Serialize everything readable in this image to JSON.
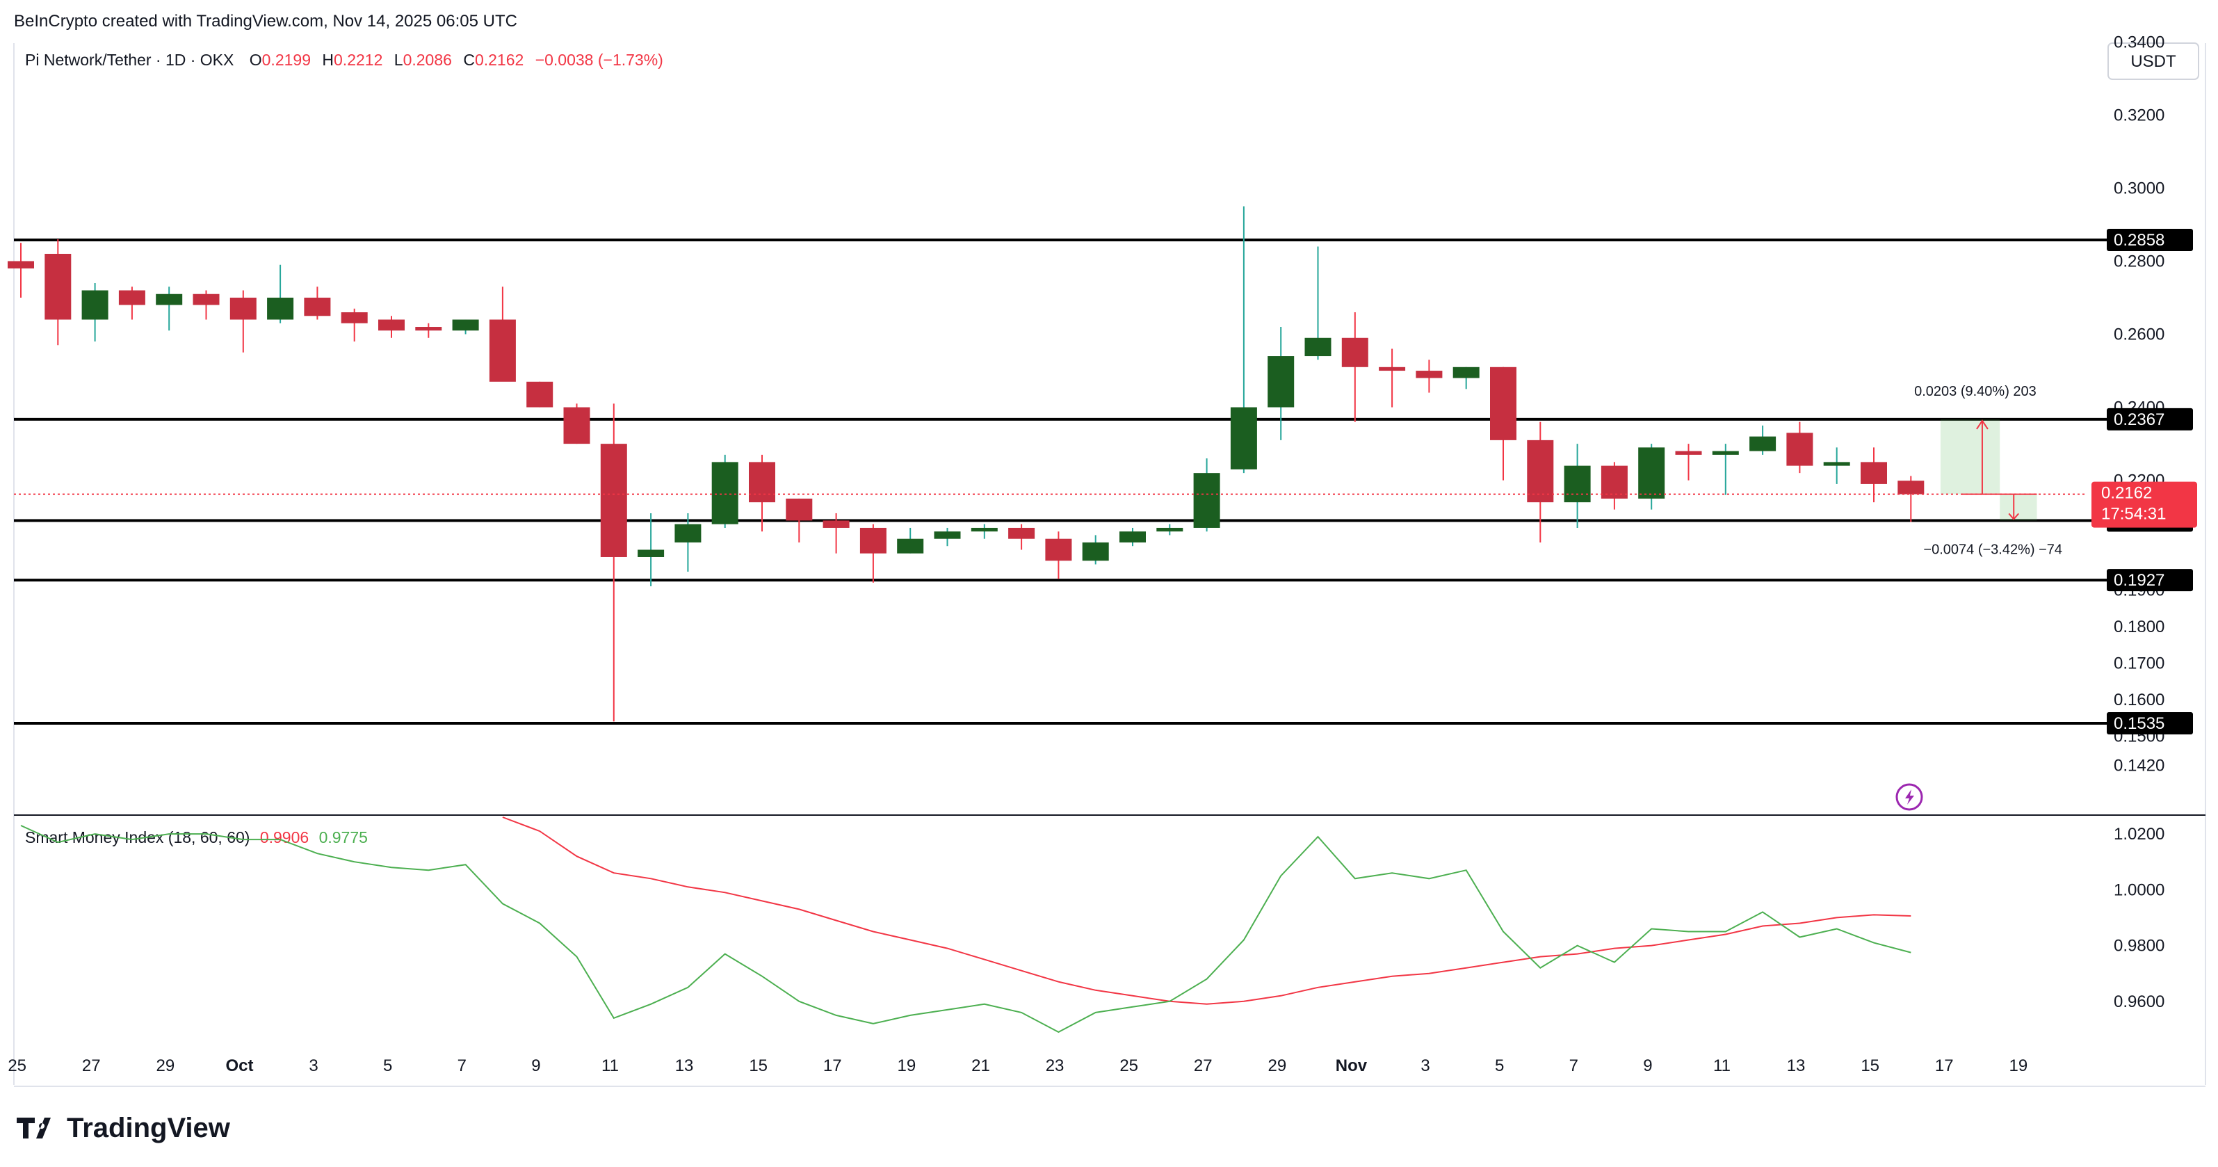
{
  "header": {
    "credit": "BeInCrypto created with TradingView.com, Nov 14, 2025 06:05 UTC"
  },
  "symbol": {
    "name": "Pi Network/Tether · 1D · OKX",
    "o_label": "O",
    "o_value": "0.2199",
    "h_label": "H",
    "h_value": "0.2212",
    "l_label": "L",
    "l_value": "0.2086",
    "c_label": "C",
    "c_value": "0.2162",
    "change": "−0.0038 (−1.73%)"
  },
  "currency_button": "USDT",
  "price_axis": {
    "ticks": [
      "0.3400",
      "0.3200",
      "0.3000",
      "0.2800",
      "0.2600",
      "0.2400",
      "0.2200",
      "0.1900",
      "0.1800",
      "0.1700",
      "0.1600",
      "0.1500",
      "0.1420"
    ]
  },
  "levels": [
    {
      "value": 0.2858,
      "label": "0.2858"
    },
    {
      "value": 0.2367,
      "label": "0.2367"
    },
    {
      "value": 0.209,
      "label": "0.2090"
    },
    {
      "value": 0.1927,
      "label": "0.1927"
    },
    {
      "value": 0.1535,
      "label": "0.1535"
    }
  ],
  "last_price": {
    "value": 0.2162,
    "label": "0.2162",
    "countdown": "17:54:31"
  },
  "projection": {
    "up_label": "0.0203 (9.40%) 203",
    "down_label": "−0.0074 (−3.42%) −74"
  },
  "indicator": {
    "name": "Smart Money Index (18, 60, 60)",
    "value_slow": "0.9906",
    "value_fast": "0.9775",
    "ticks": [
      "1.0200",
      "1.0000",
      "0.9800",
      "0.9600"
    ],
    "fast_color": "#4caf50",
    "slow_color": "#f23645"
  },
  "time_axis": {
    "labels": [
      "25",
      "27",
      "29",
      "Oct",
      "3",
      "5",
      "7",
      "9",
      "11",
      "13",
      "15",
      "17",
      "19",
      "21",
      "23",
      "25",
      "27",
      "29",
      "Nov",
      "3",
      "5",
      "7",
      "9",
      "11",
      "13",
      "15",
      "17",
      "19"
    ]
  },
  "brand": "TradingView",
  "colors": {
    "up": "#1b5e20",
    "down": "#c62f40",
    "wick_up": "#26a69a",
    "wick_down": "#f23645"
  },
  "chart_data": {
    "type": "candlestick",
    "title": "Pi Network/Tether · 1D · OKX",
    "ylim": [
      0.14,
      0.35
    ],
    "candles": [
      {
        "o": 0.28,
        "h": 0.285,
        "l": 0.27,
        "c": 0.278
      },
      {
        "o": 0.282,
        "h": 0.286,
        "l": 0.257,
        "c": 0.264
      },
      {
        "o": 0.264,
        "h": 0.274,
        "l": 0.258,
        "c": 0.272
      },
      {
        "o": 0.272,
        "h": 0.273,
        "l": 0.264,
        "c": 0.268
      },
      {
        "o": 0.268,
        "h": 0.273,
        "l": 0.261,
        "c": 0.271
      },
      {
        "o": 0.271,
        "h": 0.272,
        "l": 0.264,
        "c": 0.268
      },
      {
        "o": 0.27,
        "h": 0.272,
        "l": 0.255,
        "c": 0.264
      },
      {
        "o": 0.264,
        "h": 0.279,
        "l": 0.263,
        "c": 0.27
      },
      {
        "o": 0.27,
        "h": 0.273,
        "l": 0.264,
        "c": 0.265
      },
      {
        "o": 0.266,
        "h": 0.267,
        "l": 0.258,
        "c": 0.263
      },
      {
        "o": 0.264,
        "h": 0.265,
        "l": 0.259,
        "c": 0.261
      },
      {
        "o": 0.262,
        "h": 0.263,
        "l": 0.259,
        "c": 0.261
      },
      {
        "o": 0.261,
        "h": 0.264,
        "l": 0.26,
        "c": 0.264
      },
      {
        "o": 0.264,
        "h": 0.273,
        "l": 0.249,
        "c": 0.247
      },
      {
        "o": 0.247,
        "h": 0.247,
        "l": 0.24,
        "c": 0.24
      },
      {
        "o": 0.24,
        "h": 0.241,
        "l": 0.23,
        "c": 0.23
      },
      {
        "o": 0.23,
        "h": 0.241,
        "l": 0.154,
        "c": 0.199
      },
      {
        "o": 0.199,
        "h": 0.211,
        "l": 0.191,
        "c": 0.201
      },
      {
        "o": 0.203,
        "h": 0.211,
        "l": 0.195,
        "c": 0.208
      },
      {
        "o": 0.208,
        "h": 0.227,
        "l": 0.207,
        "c": 0.225
      },
      {
        "o": 0.225,
        "h": 0.227,
        "l": 0.206,
        "c": 0.214
      },
      {
        "o": 0.215,
        "h": 0.215,
        "l": 0.203,
        "c": 0.209
      },
      {
        "o": 0.209,
        "h": 0.211,
        "l": 0.2,
        "c": 0.207
      },
      {
        "o": 0.207,
        "h": 0.208,
        "l": 0.192,
        "c": 0.2
      },
      {
        "o": 0.2,
        "h": 0.207,
        "l": 0.2,
        "c": 0.204
      },
      {
        "o": 0.204,
        "h": 0.207,
        "l": 0.202,
        "c": 0.206
      },
      {
        "o": 0.206,
        "h": 0.208,
        "l": 0.204,
        "c": 0.207
      },
      {
        "o": 0.207,
        "h": 0.208,
        "l": 0.201,
        "c": 0.204
      },
      {
        "o": 0.204,
        "h": 0.206,
        "l": 0.193,
        "c": 0.198
      },
      {
        "o": 0.198,
        "h": 0.205,
        "l": 0.197,
        "c": 0.203
      },
      {
        "o": 0.203,
        "h": 0.207,
        "l": 0.202,
        "c": 0.206
      },
      {
        "o": 0.206,
        "h": 0.208,
        "l": 0.205,
        "c": 0.207
      },
      {
        "o": 0.207,
        "h": 0.226,
        "l": 0.206,
        "c": 0.222
      },
      {
        "o": 0.223,
        "h": 0.295,
        "l": 0.222,
        "c": 0.24
      },
      {
        "o": 0.24,
        "h": 0.262,
        "l": 0.231,
        "c": 0.254
      },
      {
        "o": 0.254,
        "h": 0.284,
        "l": 0.253,
        "c": 0.259
      },
      {
        "o": 0.259,
        "h": 0.266,
        "l": 0.236,
        "c": 0.251
      },
      {
        "o": 0.251,
        "h": 0.256,
        "l": 0.24,
        "c": 0.25
      },
      {
        "o": 0.25,
        "h": 0.253,
        "l": 0.244,
        "c": 0.248
      },
      {
        "o": 0.248,
        "h": 0.251,
        "l": 0.245,
        "c": 0.251
      },
      {
        "o": 0.251,
        "h": 0.251,
        "l": 0.22,
        "c": 0.231
      },
      {
        "o": 0.231,
        "h": 0.236,
        "l": 0.203,
        "c": 0.214
      },
      {
        "o": 0.214,
        "h": 0.23,
        "l": 0.207,
        "c": 0.224
      },
      {
        "o": 0.224,
        "h": 0.225,
        "l": 0.212,
        "c": 0.215
      },
      {
        "o": 0.215,
        "h": 0.23,
        "l": 0.212,
        "c": 0.229
      },
      {
        "o": 0.228,
        "h": 0.23,
        "l": 0.22,
        "c": 0.227
      },
      {
        "o": 0.227,
        "h": 0.23,
        "l": 0.216,
        "c": 0.228
      },
      {
        "o": 0.228,
        "h": 0.235,
        "l": 0.227,
        "c": 0.232
      },
      {
        "o": 0.233,
        "h": 0.236,
        "l": 0.222,
        "c": 0.224
      },
      {
        "o": 0.224,
        "h": 0.229,
        "l": 0.219,
        "c": 0.225
      },
      {
        "o": 0.225,
        "h": 0.229,
        "l": 0.214,
        "c": 0.219
      },
      {
        "o": 0.2199,
        "h": 0.2212,
        "l": 0.2086,
        "c": 0.2162
      }
    ],
    "smi_fast": [
      1.023,
      1.017,
      1.02,
      1.018,
      1.02,
      1.02,
      1.018,
      1.018,
      1.013,
      1.01,
      1.008,
      1.007,
      1.009,
      0.995,
      0.988,
      0.976,
      0.954,
      0.959,
      0.965,
      0.977,
      0.969,
      0.96,
      0.955,
      0.952,
      0.955,
      0.957,
      0.959,
      0.956,
      0.949,
      0.956,
      0.958,
      0.96,
      0.968,
      0.982,
      1.005,
      1.019,
      1.004,
      1.006,
      1.004,
      1.007,
      0.985,
      0.972,
      0.98,
      0.974,
      0.986,
      0.985,
      0.985,
      0.992,
      0.983,
      0.986,
      0.981,
      0.9775
    ],
    "smi_slow": [
      null,
      null,
      null,
      null,
      null,
      null,
      null,
      null,
      null,
      null,
      null,
      null,
      null,
      1.026,
      1.021,
      1.012,
      1.006,
      1.004,
      1.001,
      0.999,
      0.996,
      0.993,
      0.989,
      0.985,
      0.982,
      0.979,
      0.975,
      0.971,
      0.967,
      0.964,
      0.962,
      0.96,
      0.959,
      0.96,
      0.962,
      0.965,
      0.967,
      0.969,
      0.97,
      0.972,
      0.974,
      0.976,
      0.977,
      0.979,
      0.98,
      0.982,
      0.984,
      0.987,
      0.988,
      0.99,
      0.991,
      0.9906
    ],
    "smi_ylim": [
      0.945,
      1.026
    ]
  }
}
